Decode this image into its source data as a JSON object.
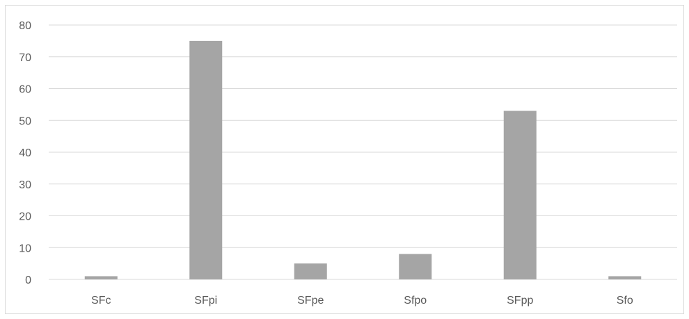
{
  "chart_data": {
    "type": "bar",
    "categories": [
      "SFc",
      "SFpi",
      "SFpe",
      "Sfpo",
      "SFpp",
      "Sfo"
    ],
    "values": [
      1,
      75,
      5,
      8,
      53,
      1
    ],
    "title": "",
    "xlabel": "",
    "ylabel": "",
    "ylim": [
      0,
      80
    ],
    "yticks": [
      0,
      10,
      20,
      30,
      40,
      50,
      60,
      70,
      80
    ],
    "grid": true,
    "legend": "none",
    "colors": {
      "bar": "#a5a5a5",
      "gridline": "#d9d9d9",
      "axis_text": "#595959",
      "frame": "#d9d9d9"
    }
  }
}
